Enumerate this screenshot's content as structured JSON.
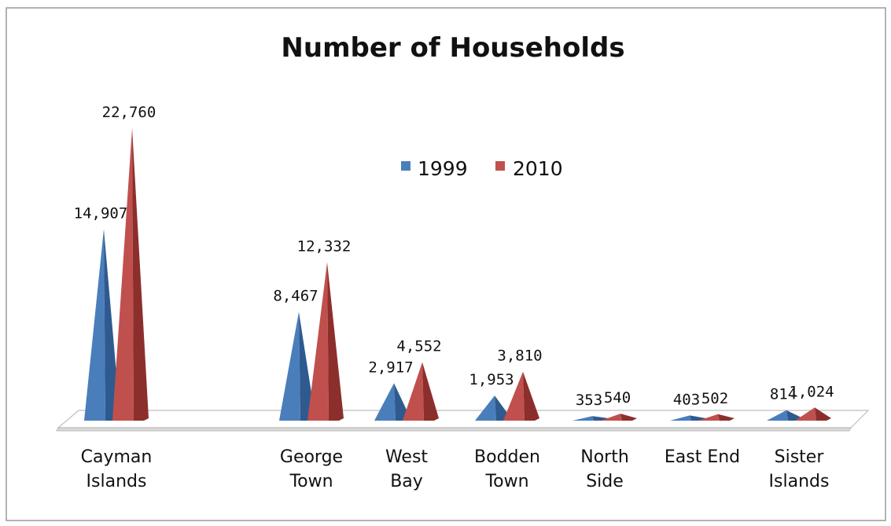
{
  "chart_data": {
    "type": "bar",
    "title": "Number of Households",
    "categories": [
      [
        "Cayman",
        "Islands"
      ],
      [
        "George",
        "Town"
      ],
      [
        "West",
        "Bay"
      ],
      [
        "Bodden",
        "Town"
      ],
      [
        "North",
        "Side"
      ],
      [
        "East End"
      ],
      [
        "Sister",
        "Islands"
      ]
    ],
    "series": [
      {
        "name": "1999",
        "color": "#4a7ebb",
        "values": [
          14907,
          8467,
          2917,
          1953,
          353,
          403,
          814
        ],
        "labels": [
          "14,907",
          "8,467",
          "2,917",
          "1,953",
          "353",
          "403",
          "814"
        ]
      },
      {
        "name": "2010",
        "color": "#c0504d",
        "values": [
          22760,
          12332,
          4552,
          3810,
          540,
          502,
          1024
        ],
        "labels": [
          "22,760",
          "12,332",
          "4,552",
          "3,810",
          "540",
          "502",
          "1,024"
        ]
      }
    ],
    "ylim": [
      0,
      22760
    ],
    "grid": false,
    "legend_position": "top-center",
    "shape": "3d-cone"
  }
}
